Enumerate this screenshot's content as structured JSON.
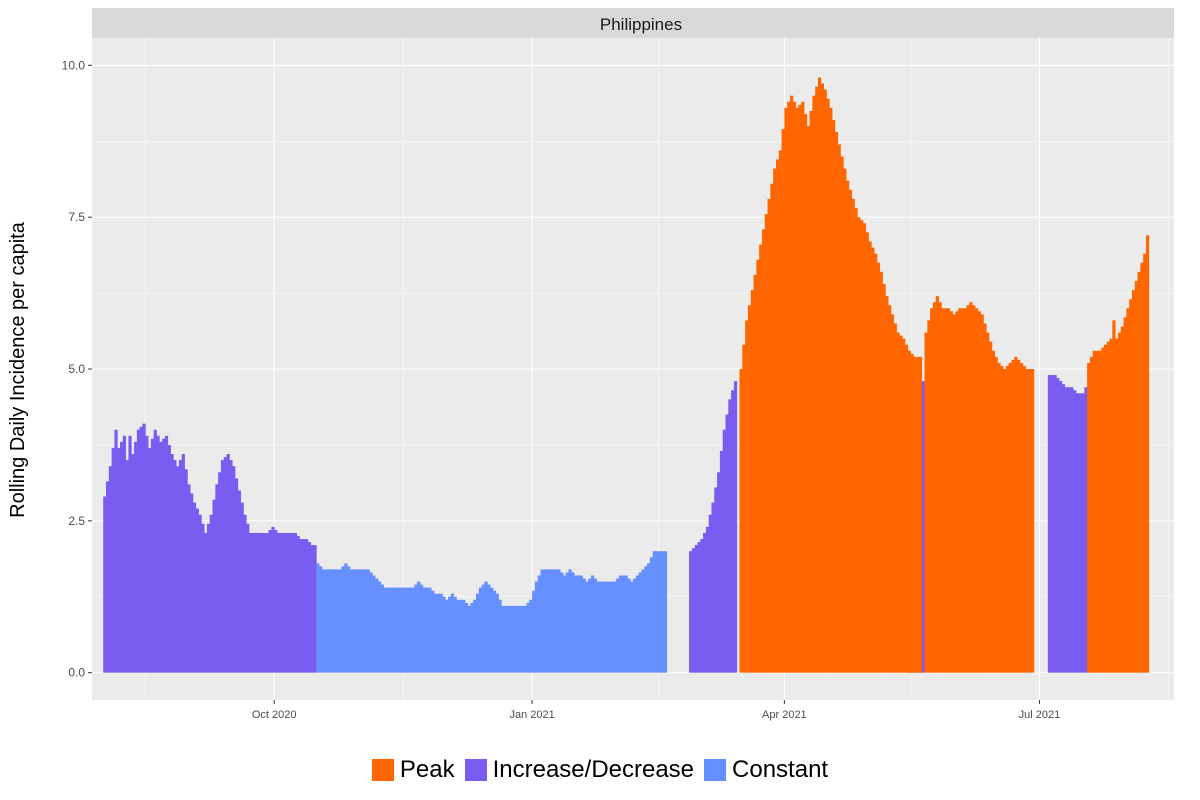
{
  "chart_data": {
    "type": "bar",
    "panel_title": "Philippines",
    "title": "",
    "xlabel": "",
    "ylabel": "Rolling Daily Incidence per capita",
    "ylim": [
      -0.45,
      10.45
    ],
    "y_ticks": [
      0.0,
      2.5,
      5.0,
      7.5,
      10.0
    ],
    "y_tick_labels": [
      "0.0",
      "2.5",
      "5.0",
      "7.5",
      "10.0"
    ],
    "x_tick_labels": [
      "Oct 2020",
      "Jan 2021",
      "Apr 2021",
      "Jul 2021"
    ],
    "grid": true,
    "legend_position": "bottom",
    "legend": [
      {
        "name": "Peak",
        "color": "#ff6600"
      },
      {
        "name": "Increase/Decrease",
        "color": "#7a5cf0"
      },
      {
        "name": "Constant",
        "color": "#6690ff"
      }
    ],
    "x_range": [
      "2020-07-28",
      "2021-08-18"
    ],
    "series": [
      {
        "name": "Increase/Decrease",
        "segments": [
          {
            "start": "2020-08-01",
            "points": [
              [
                0,
                2.9
              ],
              [
                2,
                3.4
              ],
              [
                4,
                4.0
              ],
              [
                5,
                3.7
              ],
              [
                7,
                3.9
              ],
              [
                8,
                3.5
              ],
              [
                9,
                3.9
              ],
              [
                10,
                3.6
              ],
              [
                12,
                4.0
              ],
              [
                14,
                4.1
              ],
              [
                16,
                3.7
              ],
              [
                18,
                4.0
              ],
              [
                20,
                3.8
              ],
              [
                22,
                3.9
              ],
              [
                24,
                3.6
              ],
              [
                26,
                3.4
              ],
              [
                28,
                3.6
              ],
              [
                30,
                3.1
              ],
              [
                32,
                2.8
              ],
              [
                34,
                2.6
              ],
              [
                36,
                2.3
              ],
              [
                38,
                2.6
              ],
              [
                40,
                3.1
              ],
              [
                42,
                3.5
              ],
              [
                44,
                3.6
              ],
              [
                46,
                3.4
              ],
              [
                48,
                3.0
              ],
              [
                50,
                2.6
              ],
              [
                52,
                2.3
              ],
              [
                54,
                2.3
              ],
              [
                56,
                2.3
              ],
              [
                58,
                2.3
              ],
              [
                60,
                2.4
              ],
              [
                62,
                2.3
              ],
              [
                64,
                2.3
              ],
              [
                66,
                2.3
              ],
              [
                68,
                2.3
              ],
              [
                70,
                2.2
              ],
              [
                72,
                2.2
              ],
              [
                74,
                2.1
              ],
              [
                75,
                2.1
              ]
            ]
          },
          {
            "start": "2021-02-26",
            "points": [
              [
                0,
                2.0
              ],
              [
                2,
                2.1
              ],
              [
                4,
                2.2
              ],
              [
                6,
                2.4
              ],
              [
                8,
                2.8
              ],
              [
                10,
                3.3
              ],
              [
                12,
                4.0
              ],
              [
                14,
                4.5
              ],
              [
                16,
                4.8
              ]
            ]
          },
          {
            "start": "2021-05-15",
            "points": [
              [
                0,
                4.6
              ],
              [
                2,
                4.5
              ],
              [
                4,
                4.6
              ],
              [
                5,
                4.8
              ]
            ]
          },
          {
            "start": "2021-07-04",
            "points": [
              [
                0,
                4.9
              ],
              [
                2,
                4.9
              ],
              [
                4,
                4.8
              ],
              [
                6,
                4.7
              ],
              [
                8,
                4.7
              ],
              [
                10,
                4.6
              ],
              [
                12,
                4.6
              ],
              [
                13,
                4.7
              ]
            ]
          }
        ]
      },
      {
        "name": "Constant",
        "segments": [
          {
            "start": "2020-10-16",
            "points": [
              [
                0,
                1.8
              ],
              [
                2,
                1.7
              ],
              [
                4,
                1.7
              ],
              [
                6,
                1.7
              ],
              [
                8,
                1.7
              ],
              [
                10,
                1.8
              ],
              [
                12,
                1.7
              ],
              [
                14,
                1.7
              ],
              [
                16,
                1.7
              ],
              [
                18,
                1.7
              ],
              [
                20,
                1.6
              ],
              [
                22,
                1.5
              ],
              [
                24,
                1.4
              ],
              [
                26,
                1.4
              ],
              [
                28,
                1.4
              ],
              [
                30,
                1.4
              ],
              [
                32,
                1.4
              ],
              [
                34,
                1.4
              ],
              [
                36,
                1.5
              ],
              [
                38,
                1.4
              ],
              [
                40,
                1.4
              ],
              [
                42,
                1.3
              ],
              [
                44,
                1.3
              ],
              [
                46,
                1.2
              ],
              [
                48,
                1.3
              ],
              [
                50,
                1.2
              ],
              [
                52,
                1.2
              ],
              [
                54,
                1.1
              ],
              [
                56,
                1.2
              ],
              [
                58,
                1.4
              ],
              [
                60,
                1.5
              ],
              [
                62,
                1.4
              ],
              [
                64,
                1.3
              ],
              [
                66,
                1.1
              ],
              [
                68,
                1.1
              ],
              [
                70,
                1.1
              ],
              [
                72,
                1.1
              ],
              [
                74,
                1.1
              ],
              [
                76,
                1.2
              ],
              [
                78,
                1.5
              ],
              [
                80,
                1.7
              ],
              [
                82,
                1.7
              ],
              [
                84,
                1.7
              ],
              [
                86,
                1.7
              ],
              [
                88,
                1.6
              ],
              [
                90,
                1.7
              ],
              [
                92,
                1.6
              ],
              [
                94,
                1.6
              ],
              [
                96,
                1.5
              ],
              [
                98,
                1.6
              ],
              [
                100,
                1.5
              ],
              [
                102,
                1.5
              ],
              [
                104,
                1.5
              ],
              [
                106,
                1.5
              ],
              [
                108,
                1.6
              ],
              [
                110,
                1.6
              ],
              [
                112,
                1.5
              ],
              [
                114,
                1.6
              ],
              [
                116,
                1.7
              ],
              [
                118,
                1.8
              ],
              [
                120,
                2.0
              ],
              [
                124,
                2.0
              ]
            ]
          }
        ]
      },
      {
        "name": "Peak",
        "segments": [
          {
            "start": "2021-03-16",
            "points": [
              [
                0,
                5.0
              ],
              [
                2,
                5.8
              ],
              [
                4,
                6.3
              ],
              [
                6,
                6.8
              ],
              [
                8,
                7.3
              ],
              [
                10,
                7.8
              ],
              [
                12,
                8.3
              ],
              [
                14,
                8.6
              ],
              [
                16,
                9.3
              ],
              [
                18,
                9.5
              ],
              [
                20,
                9.3
              ],
              [
                22,
                9.4
              ],
              [
                24,
                9.0
              ],
              [
                26,
                9.5
              ],
              [
                28,
                9.8
              ],
              [
                30,
                9.6
              ],
              [
                32,
                9.3
              ],
              [
                34,
                8.9
              ],
              [
                36,
                8.5
              ],
              [
                38,
                8.1
              ],
              [
                40,
                7.8
              ],
              [
                42,
                7.5
              ],
              [
                44,
                7.4
              ],
              [
                46,
                7.1
              ],
              [
                48,
                6.9
              ],
              [
                50,
                6.6
              ],
              [
                52,
                6.2
              ],
              [
                54,
                5.9
              ],
              [
                56,
                5.6
              ],
              [
                58,
                5.5
              ],
              [
                60,
                5.3
              ],
              [
                62,
                5.2
              ],
              [
                64,
                5.2
              ]
            ]
          },
          {
            "start": "2021-05-21",
            "points": [
              [
                0,
                5.6
              ],
              [
                2,
                6.0
              ],
              [
                4,
                6.2
              ],
              [
                6,
                6.0
              ],
              [
                8,
                6.0
              ],
              [
                10,
                5.9
              ],
              [
                12,
                6.0
              ],
              [
                14,
                6.0
              ],
              [
                16,
                6.1
              ],
              [
                18,
                6.0
              ],
              [
                20,
                5.9
              ],
              [
                22,
                5.6
              ],
              [
                24,
                5.3
              ],
              [
                26,
                5.1
              ],
              [
                28,
                5.0
              ],
              [
                30,
                5.1
              ],
              [
                32,
                5.2
              ],
              [
                34,
                5.1
              ],
              [
                36,
                5.0
              ],
              [
                38,
                5.0
              ]
            ]
          },
          {
            "start": "2021-07-18",
            "points": [
              [
                0,
                5.1
              ],
              [
                2,
                5.3
              ],
              [
                4,
                5.3
              ],
              [
                6,
                5.4
              ],
              [
                8,
                5.5
              ],
              [
                9,
                5.8
              ],
              [
                10,
                5.5
              ],
              [
                12,
                5.7
              ],
              [
                14,
                6.0
              ],
              [
                16,
                6.3
              ],
              [
                18,
                6.6
              ],
              [
                20,
                6.9
              ],
              [
                21,
                7.2
              ]
            ]
          }
        ]
      }
    ]
  }
}
